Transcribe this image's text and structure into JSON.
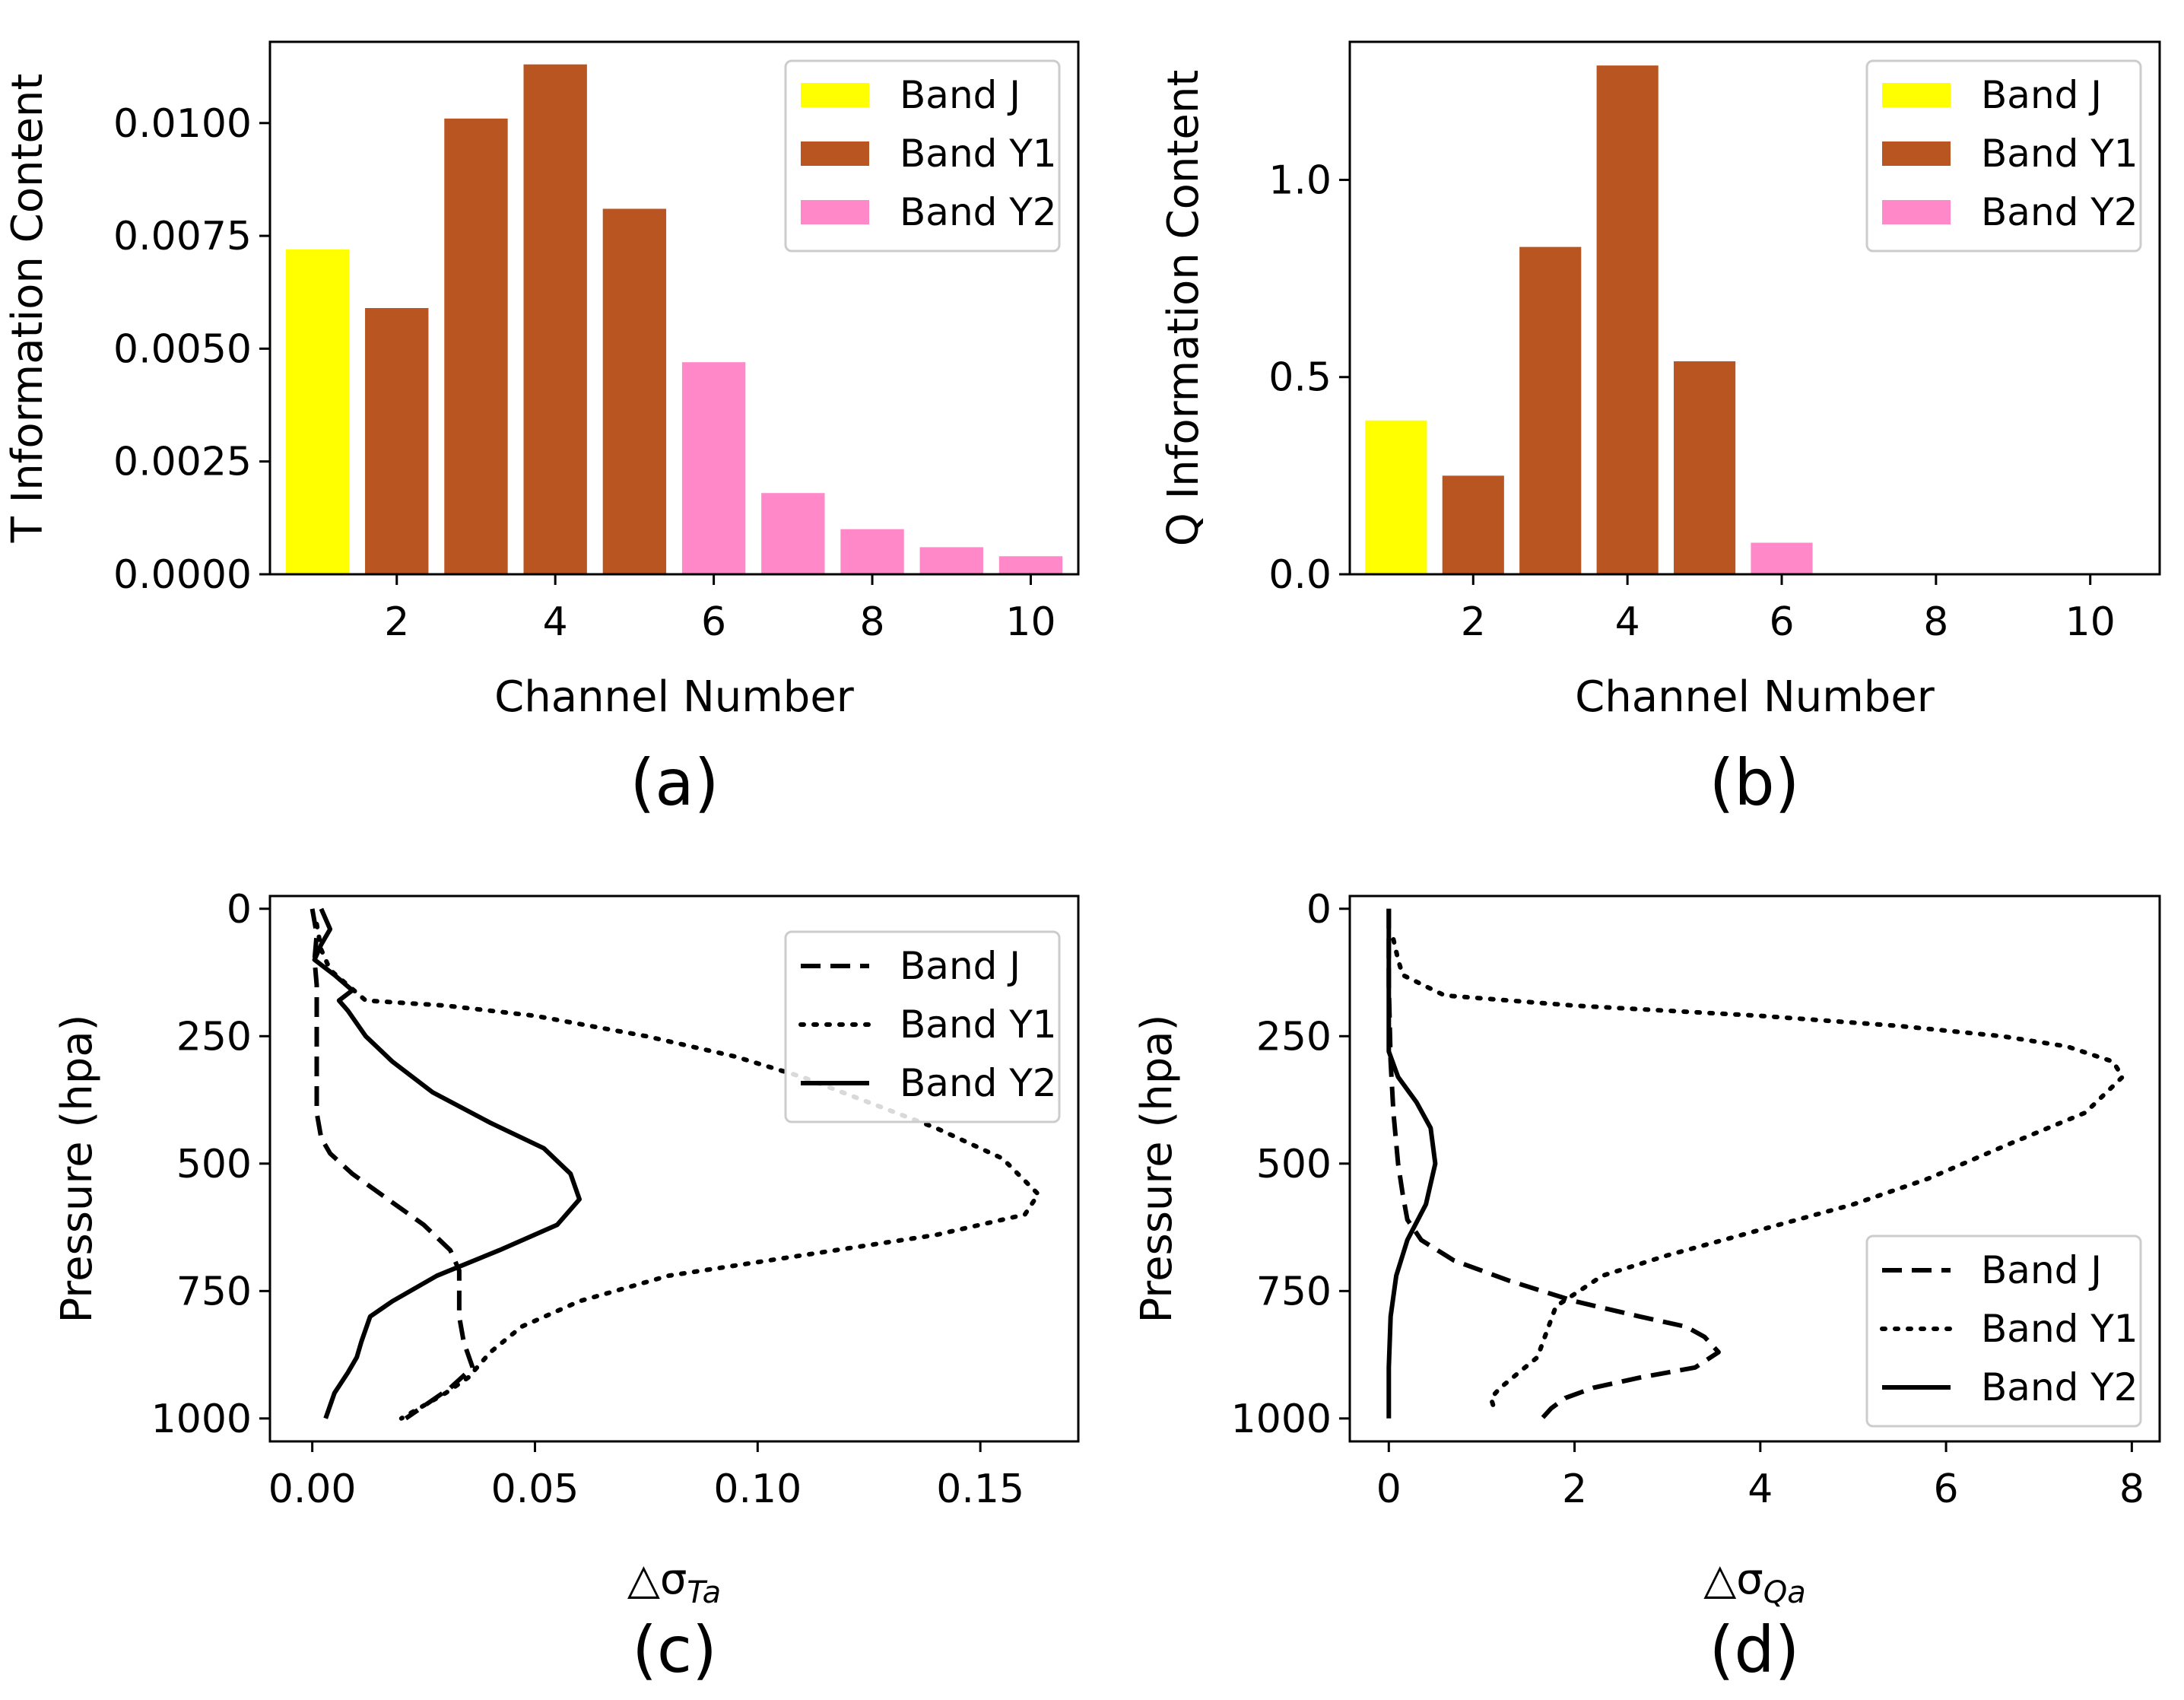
{
  "colors": {
    "band_j": "#ffff00",
    "band_y1": "#b85520",
    "band_y2": "#ff88c8"
  },
  "panel_labels": [
    "(a)",
    "(b)",
    "(c)",
    "(d)"
  ],
  "chart_data": [
    {
      "type": "bar",
      "panel": "(a)",
      "xlabel": "Channel Number",
      "ylabel": "T Information Content",
      "xlim": [
        0.4,
        10.6
      ],
      "ylim": [
        0,
        0.0118
      ],
      "xticks": [
        "2",
        "4",
        "6",
        "8",
        "10"
      ],
      "xtick_values": [
        2,
        4,
        6,
        8,
        10
      ],
      "yticks": [
        "0.0000",
        "0.0025",
        "0.0050",
        "0.0075",
        "0.0100"
      ],
      "ytick_values": [
        0,
        0.0025,
        0.005,
        0.0075,
        0.01
      ],
      "categories": [
        1,
        2,
        3,
        4,
        5,
        6,
        7,
        8,
        9,
        10
      ],
      "values": [
        0.0072,
        0.0059,
        0.0101,
        0.0113,
        0.0081,
        0.0047,
        0.0018,
        0.001,
        0.0006,
        0.0004
      ],
      "bands": [
        "Band J",
        "Band Y1",
        "Band Y1",
        "Band Y1",
        "Band Y1",
        "Band Y2",
        "Band Y2",
        "Band Y2",
        "Band Y2",
        "Band Y2"
      ],
      "legend": [
        "Band J",
        "Band Y1",
        "Band Y2"
      ],
      "legend_position": "top-right"
    },
    {
      "type": "bar",
      "panel": "(b)",
      "xlabel": "Channel Number",
      "ylabel": "Q Information Content",
      "xlim": [
        0.4,
        10.9
      ],
      "ylim": [
        0,
        1.35
      ],
      "xticks": [
        "2",
        "4",
        "6",
        "8",
        "10"
      ],
      "xtick_values": [
        2,
        4,
        6,
        8,
        10
      ],
      "yticks": [
        "0.0",
        "0.5",
        "1.0"
      ],
      "ytick_values": [
        0,
        0.5,
        1.0
      ],
      "categories": [
        1,
        2,
        3,
        4,
        5,
        6,
        7,
        8,
        9,
        10
      ],
      "values": [
        0.39,
        0.25,
        0.83,
        1.29,
        0.54,
        0.08,
        0,
        0,
        0,
        0
      ],
      "bands": [
        "Band J",
        "Band Y1",
        "Band Y1",
        "Band Y1",
        "Band Y1",
        "Band Y2",
        "Band Y2",
        "Band Y2",
        "Band Y2",
        "Band Y2"
      ],
      "legend": [
        "Band J",
        "Band Y1",
        "Band Y2"
      ],
      "legend_position": "top-right"
    },
    {
      "type": "line",
      "panel": "(c)",
      "xlabel": "△σTa",
      "xlabel_main": "△σ",
      "xlabel_sub": "Ta",
      "ylabel": "Pressure (hpa)",
      "xlim": [
        -0.0095,
        0.172
      ],
      "ylim": [
        1045,
        -25
      ],
      "xticks": [
        "0.00",
        "0.05",
        "0.10",
        "0.15"
      ],
      "xtick_values": [
        0,
        0.05,
        0.1,
        0.15
      ],
      "yticks": [
        "0",
        "250",
        "500",
        "750",
        "1000"
      ],
      "ytick_values": [
        0,
        250,
        500,
        750,
        1000
      ],
      "legend": [
        "Band J",
        "Band Y1",
        "Band Y2"
      ],
      "legend_position": "top-right",
      "series": [
        {
          "name": "Band J",
          "style": "dashed",
          "x": [
            0.0,
            0.001,
            0.0005,
            0.001,
            0.001,
            0.001,
            0.001,
            0.002,
            0.004,
            0.009,
            0.017,
            0.025,
            0.031,
            0.033,
            0.033,
            0.033,
            0.034,
            0.036,
            0.031,
            0.026,
            0.021
          ],
          "y": [
            0,
            50,
            100,
            150,
            200,
            300,
            400,
            450,
            480,
            520,
            570,
            620,
            670,
            710,
            750,
            800,
            850,
            900,
            940,
            970,
            1000
          ]
        },
        {
          "name": "Band Y1",
          "style": "dotted",
          "x": [
            0.001,
            0.002,
            0.004,
            0.008,
            0.012,
            0.03,
            0.05,
            0.075,
            0.095,
            0.11,
            0.125,
            0.14,
            0.155,
            0.163,
            0.16,
            0.14,
            0.11,
            0.08,
            0.06,
            0.047,
            0.04,
            0.035,
            0.03,
            0.02
          ],
          "y": [
            30,
            80,
            120,
            150,
            180,
            190,
            210,
            250,
            290,
            330,
            380,
            430,
            490,
            560,
            600,
            640,
            680,
            720,
            770,
            820,
            870,
            920,
            950,
            1000
          ]
        },
        {
          "name": "Band Y2",
          "style": "solid",
          "x": [
            0.002,
            0.004,
            0.002,
            0.0005,
            0.005,
            0.009,
            0.006,
            0.008,
            0.012,
            0.018,
            0.027,
            0.04,
            0.052,
            0.058,
            0.06,
            0.055,
            0.042,
            0.028,
            0.018,
            0.013,
            0.011,
            0.01,
            0.008,
            0.005,
            0.003
          ],
          "y": [
            0,
            40,
            70,
            100,
            130,
            160,
            180,
            200,
            250,
            300,
            360,
            420,
            470,
            520,
            570,
            620,
            670,
            720,
            770,
            800,
            850,
            880,
            910,
            950,
            1000
          ]
        }
      ]
    },
    {
      "type": "line",
      "panel": "(d)",
      "xlabel": "△σQa",
      "xlabel_main": "△σ",
      "xlabel_sub": "Qa",
      "ylabel": "Pressure (hpa)",
      "xlim": [
        -0.42,
        8.3
      ],
      "ylim": [
        1045,
        -25
      ],
      "xticks": [
        "0",
        "2",
        "4",
        "6",
        "8"
      ],
      "xtick_values": [
        0,
        2,
        4,
        6,
        8
      ],
      "yticks": [
        "0",
        "250",
        "500",
        "750",
        "1000"
      ],
      "ytick_values": [
        0,
        250,
        500,
        750,
        1000
      ],
      "legend": [
        "Band J",
        "Band Y1",
        "Band Y2"
      ],
      "legend_position": "bottom-right",
      "series": [
        {
          "name": "Band J",
          "style": "dashed",
          "x": [
            0.0,
            0.0,
            0.02,
            0.05,
            0.1,
            0.15,
            0.2,
            0.35,
            0.7,
            1.3,
            2.0,
            2.7,
            3.2,
            3.4,
            3.55,
            3.3,
            2.7,
            2.2,
            1.9,
            1.75,
            1.65
          ],
          "y": [
            0,
            150,
            300,
            400,
            500,
            560,
            610,
            650,
            690,
            730,
            770,
            800,
            820,
            840,
            870,
            900,
            920,
            940,
            960,
            980,
            1000
          ]
        },
        {
          "name": "Band Y1",
          "style": "dotted",
          "x": [
            0.05,
            0.1,
            0.15,
            0.6,
            2.0,
            4.0,
            5.5,
            6.6,
            7.3,
            7.8,
            7.9,
            7.5,
            6.7,
            5.8,
            5.0,
            4.0,
            3.0,
            2.3,
            1.8,
            1.7,
            1.6,
            1.4,
            1.2,
            1.1,
            1.15
          ],
          "y": [
            60,
            100,
            130,
            170,
            190,
            210,
            230,
            250,
            270,
            300,
            330,
            400,
            460,
            530,
            580,
            630,
            680,
            720,
            780,
            830,
            880,
            910,
            940,
            960,
            990
          ]
        },
        {
          "name": "Band Y2",
          "style": "solid",
          "x": [
            0.0,
            0.0,
            0.0,
            0.1,
            0.3,
            0.45,
            0.5,
            0.4,
            0.2,
            0.08,
            0.02,
            0.0,
            0.0
          ],
          "y": [
            0,
            100,
            280,
            330,
            380,
            430,
            500,
            580,
            650,
            720,
            800,
            900,
            1000
          ]
        }
      ]
    }
  ]
}
